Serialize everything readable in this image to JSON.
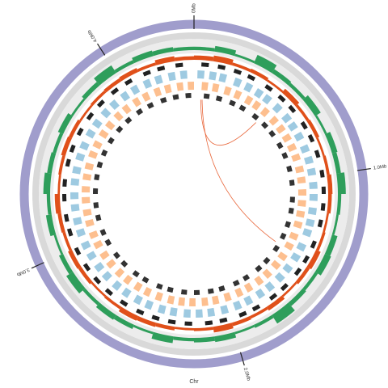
{
  "chart_data": {
    "type": "circos",
    "chromosome": "Chr",
    "xlim": [
      0,
      4.4
    ],
    "xticks": [
      {
        "value": 0,
        "label": "0Mb"
      },
      {
        "value": 1,
        "label": "1.0Mb"
      },
      {
        "value": 2,
        "label": "2.0Mb"
      },
      {
        "value": 3,
        "label": "3.0Mb"
      },
      {
        "value": 4,
        "label": "4.0Mb"
      }
    ],
    "ideogram_color": "#a09dcc",
    "bin_size": 0.1,
    "gc_track": {
      "color": "#2e9e5b",
      "ylim": [
        0,
        1
      ],
      "values": [
        0.3,
        0.5,
        0.2,
        0.8,
        0.4,
        0.3,
        0.6,
        0.2,
        0.5,
        0.4,
        0.7,
        0.3,
        0.2,
        0.5,
        0.6,
        0.3,
        0.4,
        0.9,
        0.3,
        0.2,
        0.5,
        0.4,
        0.3,
        0.6,
        0.2,
        0.4,
        0.5,
        0.3,
        0.7,
        0.4,
        0.2,
        0.5,
        0.3,
        0.6,
        0.4,
        0.3,
        0.5,
        0.2,
        0.4,
        0.8,
        0.3,
        0.5,
        0.4,
        0.3
      ]
    },
    "density_track": {
      "color": "#e0501a",
      "ylim": [
        0,
        1
      ],
      "values": [
        0.6,
        0.8,
        0.4,
        0.5,
        0.3,
        0.7,
        0.4,
        0.5,
        0.3,
        0.4,
        0.6,
        0.5,
        0.3,
        0.4,
        0.7,
        0.5,
        0.3,
        0.6,
        0.4,
        0.5,
        0.8,
        0.4,
        0.3,
        0.5,
        0.6,
        0.7,
        0.4,
        0.3,
        0.5,
        0.6,
        0.4,
        0.5,
        0.7,
        0.3,
        0.4,
        0.6,
        0.5,
        0.3,
        0.4,
        0.5,
        0.6,
        0.4,
        0.7,
        0.5
      ]
    },
    "feature_width": 0.04,
    "forward_genes": {
      "color": "#9ecae1",
      "positions": [
        0.02,
        0.09,
        0.15,
        0.24,
        0.31,
        0.38,
        0.44,
        0.52,
        0.6,
        0.66,
        0.73,
        0.81,
        0.88,
        0.95,
        1.03,
        1.1,
        1.18,
        1.25,
        1.31,
        1.4,
        1.47,
        1.55,
        1.62,
        1.7,
        1.77,
        1.85,
        1.92,
        2.0,
        2.08,
        2.15,
        2.22,
        2.3,
        2.37,
        2.45,
        2.52,
        2.6,
        2.67,
        2.75,
        2.82,
        2.9,
        2.97,
        3.05,
        3.12,
        3.2,
        3.27,
        3.35,
        3.42,
        3.5,
        3.57,
        3.65,
        3.72,
        3.8,
        3.87,
        3.95,
        4.02,
        4.1,
        4.17,
        4.25,
        4.32
      ]
    },
    "reverse_genes": {
      "color": "#fdbf8f",
      "positions": [
        0.05,
        0.12,
        0.2,
        0.27,
        0.35,
        0.41,
        0.48,
        0.56,
        0.63,
        0.7,
        0.77,
        0.84,
        0.92,
        0.99,
        1.07,
        1.14,
        1.21,
        1.28,
        1.36,
        1.43,
        1.51,
        1.58,
        1.66,
        1.73,
        1.81,
        1.88,
        1.96,
        2.04,
        2.11,
        2.19,
        2.26,
        2.33,
        2.41,
        2.49,
        2.56,
        2.64,
        2.71,
        2.79,
        2.86,
        2.94,
        3.01,
        3.09,
        3.16,
        3.24,
        3.31,
        3.39,
        3.46,
        3.54,
        3.61,
        3.69,
        3.76,
        3.84,
        3.91,
        3.99,
        4.06,
        4.14,
        4.21,
        4.29,
        4.36
      ]
    },
    "outer_marks": {
      "color": "#222222",
      "positions": [
        0.04,
        0.13,
        0.22,
        0.3,
        0.41,
        0.5,
        0.58,
        0.69,
        0.77,
        0.86,
        0.97,
        1.06,
        1.15,
        1.24,
        1.36,
        1.45,
        1.53,
        1.64,
        1.72,
        1.83,
        1.91,
        2.02,
        2.1,
        2.21,
        2.3,
        2.39,
        2.48,
        2.58,
        2.68,
        2.77,
        2.86,
        2.96,
        3.07,
        3.15,
        3.26,
        3.34,
        3.45,
        3.53,
        3.63,
        3.73,
        3.82,
        3.92,
        4.01,
        4.12,
        4.2,
        4.3
      ]
    },
    "inner_marks": {
      "color": "#333333",
      "positions": [
        0.07,
        0.16,
        0.26,
        0.34,
        0.45,
        0.54,
        0.62,
        0.72,
        0.8,
        0.9,
        1.0,
        1.12,
        1.2,
        1.3,
        1.39,
        1.49,
        1.6,
        1.68,
        1.79,
        1.87,
        1.98,
        2.06,
        2.16,
        2.25,
        2.35,
        2.43,
        2.54,
        2.62,
        2.73,
        2.81,
        2.92,
        3.0,
        3.11,
        3.2,
        3.3,
        3.4,
        3.49,
        3.58,
        3.68,
        3.78,
        3.87,
        3.97,
        4.06,
        4.16,
        4.25,
        4.34
      ]
    },
    "link_color": "#e8663a",
    "links": [
      [
        0.05,
        0.5
      ],
      [
        0.06,
        1.47
      ]
    ]
  }
}
